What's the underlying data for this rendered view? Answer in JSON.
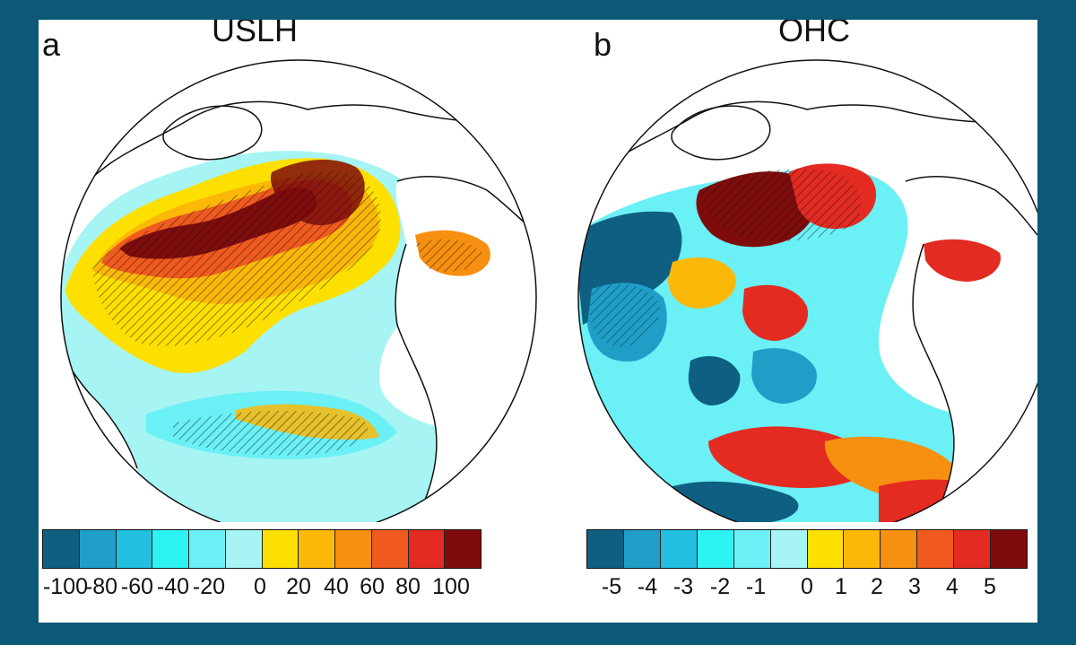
{
  "figure": {
    "panels": [
      {
        "id": "a",
        "letter": "a",
        "title": "USLH",
        "colorbar": {
          "colors": [
            "#0f5f83",
            "#1f9fc8",
            "#22bfe0",
            "#2ef3f3",
            "#6af0f5",
            "#a6f4f3",
            "#fde000",
            "#fcb808",
            "#f78f10",
            "#f05a1e",
            "#e32b22",
            "#7f0c0c"
          ],
          "tick_labels": [
            "-100",
            "-80",
            "-60",
            "-40",
            "-20",
            "0",
            "20",
            "40",
            "60",
            "80",
            "100"
          ]
        }
      },
      {
        "id": "b",
        "letter": "b",
        "title": "OHC",
        "colorbar": {
          "colors": [
            "#0f5f83",
            "#1f9fc8",
            "#22bfe0",
            "#2ef3f3",
            "#6af0f5",
            "#a6f4f3",
            "#fde000",
            "#fcb808",
            "#f78f10",
            "#f05a1e",
            "#e32b22",
            "#7f0c0c"
          ],
          "tick_labels": [
            "-5",
            "-4",
            "-3",
            "-2",
            "-1",
            "0",
            "1",
            "2",
            "3",
            "4",
            "5"
          ]
        }
      }
    ]
  }
}
